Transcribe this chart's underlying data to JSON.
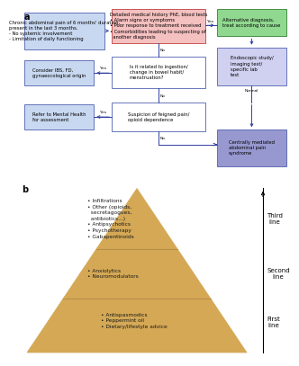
{
  "panel_a_label": "a",
  "panel_b_label": "b",
  "bg_color": "#ffffff",
  "flowchart": {
    "box_left": {
      "text": "Chronic abdominal pain of 6 months' duration,\npresent in the last 3 months.\n- No systemic involvement\n- Limitation of daily functioning",
      "color": "#c8d8f0",
      "border": "#5060b0"
    },
    "box_center_top": {
      "text": "Detailed medical history PhE, blood tests\n• Alarm signs or symptoms\n• Poor response to treatment received\n• Comorbidities leading to suspecting of\n  another diagnosis",
      "color": "#f5c0c0",
      "border": "#c04040"
    },
    "box_right_top": {
      "text": "Alternative diagnosis,\ntreat according to cause",
      "color": "#90d890",
      "border": "#308030"
    },
    "box_right_mid": {
      "text": "Endoscopic study/\nimaging test/\nspecific lab\ntest",
      "color": "#d0d0f0",
      "border": "#5060b0"
    },
    "box_right_bottom": {
      "text": "Centrally mediated\nabdominal pain\nsyndrome",
      "color": "#9898d0",
      "border": "#5060b0"
    },
    "box_mid_q1": {
      "text": "Is it related to ingestion/\nchange in bowel habit/\nmenstruation?",
      "color": "#ffffff",
      "border": "#5060b0"
    },
    "box_left_mid": {
      "text": "Consider IBS, FD,\ngynaeocological origin",
      "color": "#c8d8f0",
      "border": "#5060b0"
    },
    "box_mid_q2": {
      "text": "Suspicion of feigned pain/\nopioid dependence",
      "color": "#ffffff",
      "border": "#5060b0"
    },
    "box_left_bottom": {
      "text": "Refer to Mental Health\nfor assessment",
      "color": "#c8d8f0",
      "border": "#5060b0"
    },
    "arrow_color": "#3040a0"
  },
  "pyramid": {
    "triangle_color": "#d4a855",
    "line_color": "#b8904a",
    "text_color": "#1a1a1a",
    "side_line_color": "#000000",
    "third_line_text": "Third\nline",
    "second_line_text": "Second\nline",
    "first_line_text": "First\nline",
    "third_items": "• Infiltrations\n• Other (opioids,\n  secretagogues,\n  antibiotics...)\n• Antipsychotics\n• Psychotherapy\n• Gabapentinoids",
    "second_items": "• Anxiolytics\n• Neuromodulators",
    "first_items": "• Antispasmodics\n• Peppermint oil\n• Dietary/lifestyle advice"
  }
}
